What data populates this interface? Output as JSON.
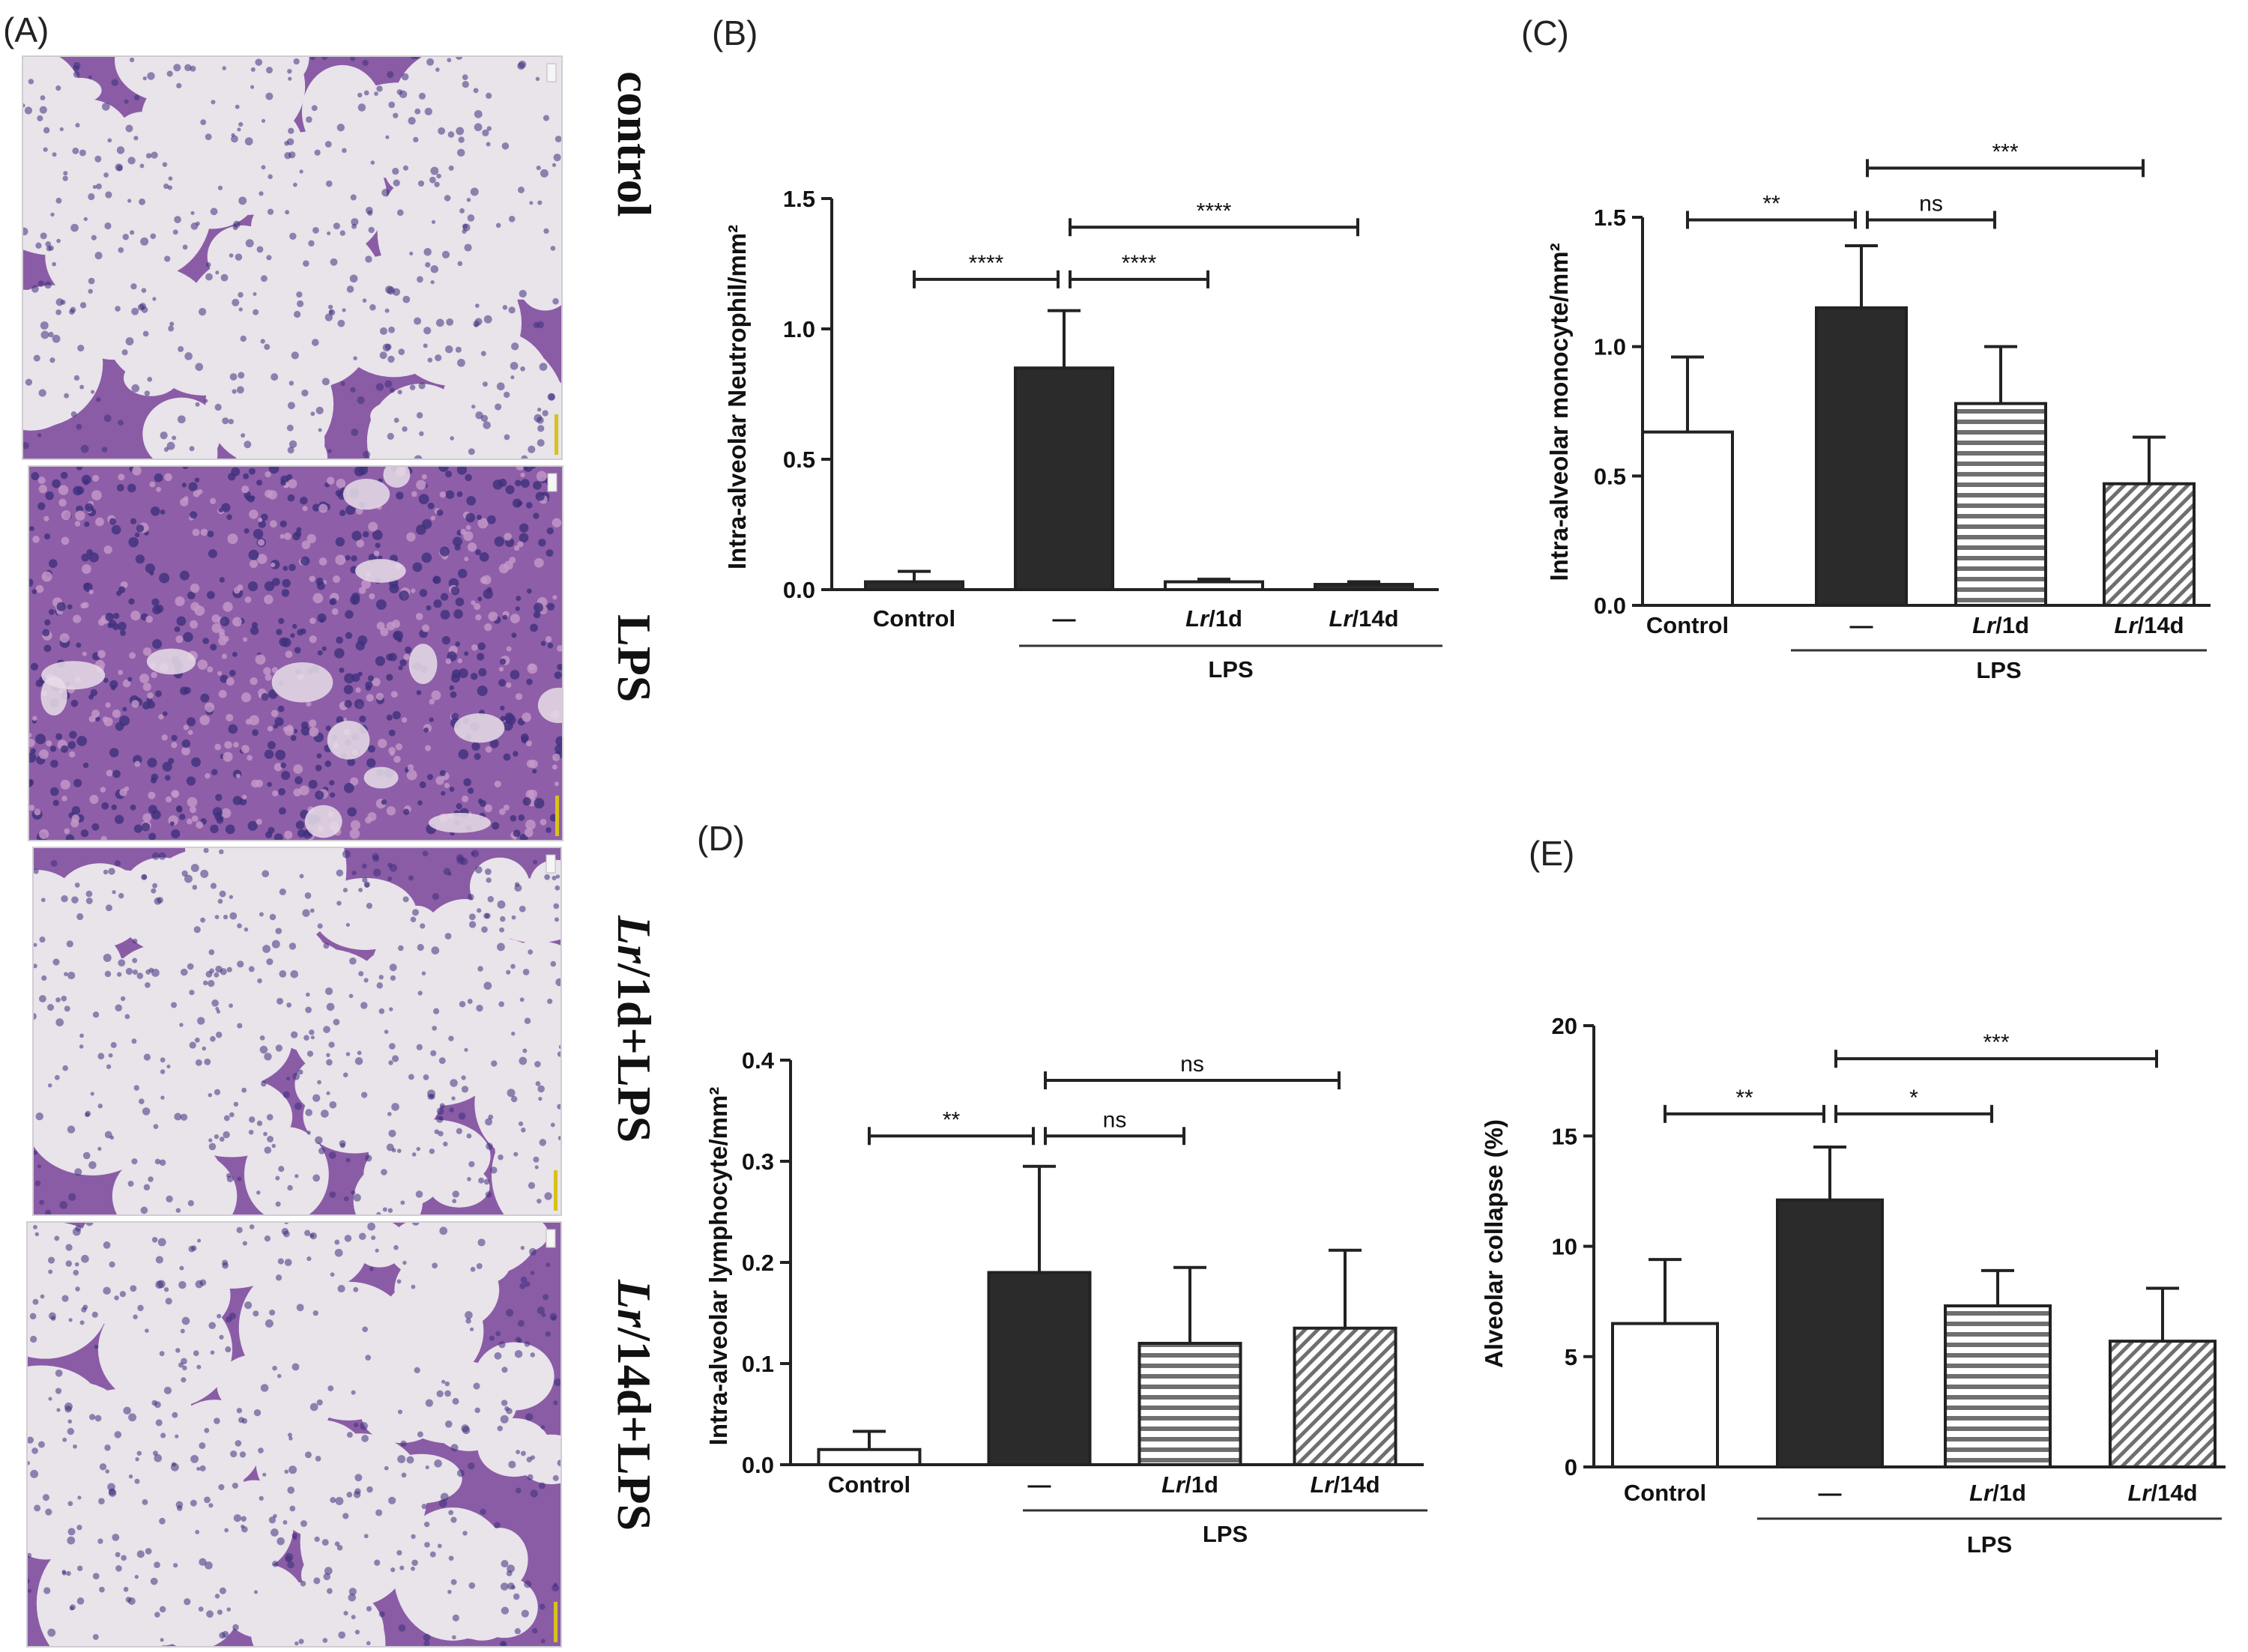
{
  "panel_a": {
    "label": "(A)",
    "images": [
      {
        "name": "control",
        "label_parts": [
          {
            "t": "control",
            "i": false
          }
        ]
      },
      {
        "name": "lps",
        "label_parts": [
          {
            "t": "LPS",
            "i": false
          }
        ]
      },
      {
        "name": "lr1d-lps",
        "label_parts": [
          {
            "t": "Lr",
            "i": true
          },
          {
            "t": "/1d+LPS",
            "i": false
          }
        ]
      },
      {
        "name": "lr14d-lps",
        "label_parts": [
          {
            "t": "Lr",
            "i": true
          },
          {
            "t": "/14d+LPS",
            "i": false
          }
        ]
      }
    ],
    "colors": {
      "background": "#e9e3ea",
      "tissue": "#8a5ca6",
      "nuclei": "#3e2f7c",
      "scale_bar": "#d8c21a"
    }
  },
  "chart_data": [
    {
      "id": "b",
      "panel_label": "(B)",
      "type": "bar",
      "ylabel": "Intra-alveolar Neutrophil/mm²",
      "ylim": [
        0,
        1.5
      ],
      "yticks": [
        0.0,
        0.5,
        1.0,
        1.5
      ],
      "ytick_labels": [
        "0.0",
        "0.5",
        "1.0",
        "1.5"
      ],
      "categories": [
        {
          "parts": [
            {
              "t": "Control",
              "i": false
            }
          ]
        },
        {
          "parts": [
            {
              "t": "—",
              "i": false
            }
          ]
        },
        {
          "parts": [
            {
              "t": "Lr",
              "i": true
            },
            {
              "t": "/1d",
              "i": false
            }
          ]
        },
        {
          "parts": [
            {
              "t": "Lr",
              "i": true
            },
            {
              "t": "/14d",
              "i": false
            }
          ]
        }
      ],
      "values": [
        0.03,
        0.85,
        0.03,
        0.02
      ],
      "errors": [
        0.04,
        0.22,
        0.01,
        0.01
      ],
      "fills": [
        "solid",
        "solid",
        "white",
        "solid"
      ],
      "group_label": "LPS",
      "group_span": [
        1,
        3
      ],
      "comparisons": [
        {
          "from": 0,
          "to": 1,
          "label": "****",
          "y": 1.19
        },
        {
          "from": 1,
          "to": 2,
          "label": "****",
          "y": 1.19
        },
        {
          "from": 1,
          "to": 3,
          "label": "****",
          "y": 1.39
        }
      ],
      "grid": false
    },
    {
      "id": "c",
      "panel_label": "(C)",
      "type": "bar",
      "ylabel": "Intra-alveolar monocyte/mm²",
      "ylim": [
        0,
        1.5
      ],
      "yticks": [
        0.0,
        0.5,
        1.0,
        1.5
      ],
      "ytick_labels": [
        "0.0",
        "0.5",
        "1.0",
        "1.5"
      ],
      "categories": [
        {
          "parts": [
            {
              "t": "Control",
              "i": false
            }
          ]
        },
        {
          "parts": [
            {
              "t": "—",
              "i": false
            }
          ]
        },
        {
          "parts": [
            {
              "t": "Lr",
              "i": true
            },
            {
              "t": "/1d",
              "i": false
            }
          ]
        },
        {
          "parts": [
            {
              "t": "Lr",
              "i": true
            },
            {
              "t": "/14d",
              "i": false
            }
          ]
        }
      ],
      "values": [
        0.67,
        1.15,
        0.78,
        0.47
      ],
      "errors": [
        0.29,
        0.24,
        0.22,
        0.18
      ],
      "fills": [
        "white",
        "dark",
        "hstripe",
        "diag"
      ],
      "group_label": "LPS",
      "group_span": [
        1,
        3
      ],
      "comparisons": [
        {
          "from": 0,
          "to": 1,
          "label": "**",
          "y": 1.49
        },
        {
          "from": 1,
          "to": 2,
          "label": "ns",
          "y": 1.49
        },
        {
          "from": 1,
          "to": 3,
          "label": "***",
          "y": 1.69
        }
      ],
      "grid": false
    },
    {
      "id": "d",
      "panel_label": "(D)",
      "type": "bar",
      "ylabel": "Intra-alveolar lymphocyte/mm²",
      "ylim": [
        0,
        0.4
      ],
      "yticks": [
        0.0,
        0.1,
        0.2,
        0.3,
        0.4
      ],
      "ytick_labels": [
        "0.0",
        "0.1",
        "0.2",
        "0.3",
        "0.4"
      ],
      "categories": [
        {
          "parts": [
            {
              "t": "Control",
              "i": false
            }
          ]
        },
        {
          "parts": [
            {
              "t": "—",
              "i": false
            }
          ]
        },
        {
          "parts": [
            {
              "t": "Lr",
              "i": true
            },
            {
              "t": "/1d",
              "i": false
            }
          ]
        },
        {
          "parts": [
            {
              "t": "Lr",
              "i": true
            },
            {
              "t": "/14d",
              "i": false
            }
          ]
        }
      ],
      "values": [
        0.015,
        0.19,
        0.12,
        0.135
      ],
      "errors": [
        0.018,
        0.105,
        0.075,
        0.077
      ],
      "fills": [
        "white",
        "dark",
        "hstripe",
        "diag"
      ],
      "group_label": "LPS",
      "group_span": [
        1,
        3
      ],
      "comparisons": [
        {
          "from": 0,
          "to": 1,
          "label": "**",
          "y": 0.325
        },
        {
          "from": 1,
          "to": 2,
          "label": "ns",
          "y": 0.325
        },
        {
          "from": 1,
          "to": 3,
          "label": "ns",
          "y": 0.38
        }
      ],
      "grid": false
    },
    {
      "id": "e",
      "panel_label": "(E)",
      "type": "bar",
      "ylabel": "Alveolar collapse (%)",
      "ylim": [
        0,
        20
      ],
      "yticks": [
        0,
        5,
        10,
        15,
        20
      ],
      "ytick_labels": [
        "0",
        "5",
        "10",
        "15",
        "20"
      ],
      "categories": [
        {
          "parts": [
            {
              "t": "Control",
              "i": false
            }
          ]
        },
        {
          "parts": [
            {
              "t": "—",
              "i": false
            }
          ]
        },
        {
          "parts": [
            {
              "t": "Lr",
              "i": true
            },
            {
              "t": "/1d",
              "i": false
            }
          ]
        },
        {
          "parts": [
            {
              "t": "Lr",
              "i": true
            },
            {
              "t": "/14d",
              "i": false
            }
          ]
        }
      ],
      "values": [
        6.5,
        12.1,
        7.3,
        5.7
      ],
      "errors": [
        2.9,
        2.4,
        1.6,
        2.4
      ],
      "fills": [
        "white",
        "dark",
        "hstripe",
        "diag"
      ],
      "group_label": "LPS",
      "group_span": [
        1,
        3
      ],
      "comparisons": [
        {
          "from": 0,
          "to": 1,
          "label": "**",
          "y": 16.0
        },
        {
          "from": 1,
          "to": 2,
          "label": "*",
          "y": 16.0
        },
        {
          "from": 1,
          "to": 3,
          "label": "***",
          "y": 18.5
        }
      ],
      "grid": false
    }
  ]
}
